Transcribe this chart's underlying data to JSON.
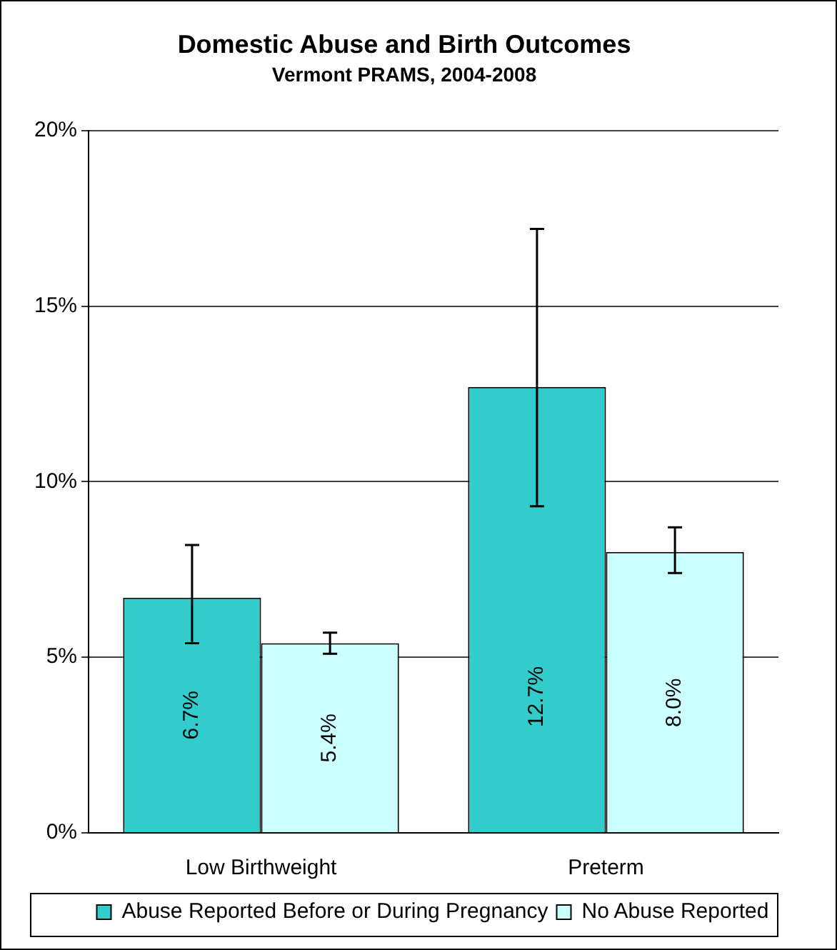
{
  "chart_data": {
    "type": "bar",
    "title": "Domestic Abuse and Birth Outcomes",
    "subtitle": "Vermont PRAMS, 2004-2008",
    "categories": [
      "Low Birthweight",
      "Preterm"
    ],
    "series": [
      {
        "name": "Abuse Reported Before or During Pregnancy",
        "color": "#33cccc",
        "values": [
          6.7,
          12.7
        ],
        "errors": [
          [
            5.4,
            8.2
          ],
          [
            9.3,
            17.2
          ]
        ],
        "value_labels": [
          "6.7%",
          "12.7%"
        ]
      },
      {
        "name": "No Abuse Reported",
        "color": "#ccffff",
        "values": [
          5.4,
          8.0
        ],
        "errors": [
          [
            5.1,
            5.7
          ],
          [
            7.4,
            8.7
          ]
        ],
        "value_labels": [
          "5.4%",
          "8.0%"
        ]
      }
    ],
    "ylim": [
      0,
      20
    ],
    "yticks": [
      {
        "value": 0,
        "label": "0%"
      },
      {
        "value": 5,
        "label": "5%"
      },
      {
        "value": 10,
        "label": "10%"
      },
      {
        "value": 15,
        "label": "15%"
      },
      {
        "value": 20,
        "label": "20%"
      }
    ],
    "grid": "y",
    "legend": "bottom"
  }
}
